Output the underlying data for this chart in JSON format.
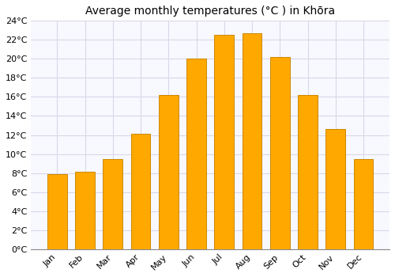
{
  "title": "Average monthly temperatures (°C ) in Khōra",
  "months": [
    "Jan",
    "Feb",
    "Mar",
    "Apr",
    "May",
    "Jun",
    "Jul",
    "Aug",
    "Sep",
    "Oct",
    "Nov",
    "Dec"
  ],
  "values": [
    7.9,
    8.1,
    9.5,
    12.1,
    16.2,
    20.0,
    22.5,
    22.7,
    20.2,
    16.2,
    12.6,
    9.5
  ],
  "bar_color": "#FFA800",
  "bar_edge_color": "#CC8800",
  "background_color": "#ffffff",
  "plot_bg_color": "#f8f8ff",
  "grid_color": "#d8d8e8",
  "ylim": [
    0,
    24
  ],
  "ytick_step": 2,
  "title_fontsize": 10,
  "tick_fontsize": 8,
  "bar_width": 0.7
}
